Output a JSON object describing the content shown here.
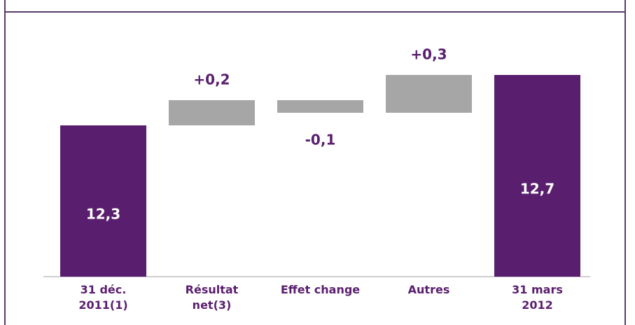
{
  "chart_data": {
    "type": "waterfall",
    "categories": [
      [
        "31 déc.",
        "2011(1)"
      ],
      [
        "Résultat",
        "net(3)"
      ],
      [
        "Effet change"
      ],
      [
        "Autres"
      ],
      [
        "31 mars",
        "2012"
      ]
    ],
    "values": [
      12.3,
      0.2,
      -0.1,
      0.3,
      12.7
    ],
    "value_labels": [
      "12,3",
      "+0,2",
      "-0,1",
      "+0,3",
      "12,7"
    ],
    "is_total": [
      true,
      false,
      false,
      false,
      true
    ],
    "total_color": "#5a1e6e",
    "delta_color": "#a6a6a6",
    "ylim": [
      11.1,
      13.2
    ]
  }
}
